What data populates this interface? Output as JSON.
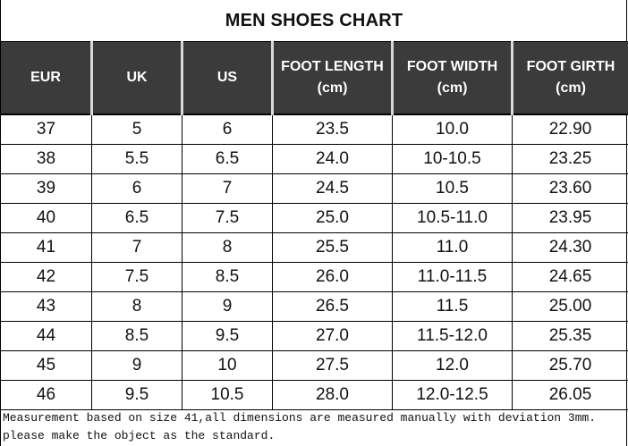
{
  "title": "MEN SHOES CHART",
  "table": {
    "headers": [
      {
        "line1": "EUR",
        "line2": ""
      },
      {
        "line1": "UK",
        "line2": ""
      },
      {
        "line1": "US",
        "line2": ""
      },
      {
        "line1": "FOOT LENGTH",
        "line2": "(cm)"
      },
      {
        "line1": "FOOT WIDTH",
        "line2": "(cm)"
      },
      {
        "line1": "FOOT GIRTH",
        "line2": "(cm)"
      }
    ],
    "rows": [
      [
        "37",
        "5",
        "6",
        "23.5",
        "10.0",
        "22.90"
      ],
      [
        "38",
        "5.5",
        "6.5",
        "24.0",
        "10-10.5",
        "23.25"
      ],
      [
        "39",
        "6",
        "7",
        "24.5",
        "10.5",
        "23.60"
      ],
      [
        "40",
        "6.5",
        "7.5",
        "25.0",
        "10.5-11.0",
        "23.95"
      ],
      [
        "41",
        "7",
        "8",
        "25.5",
        "11.0",
        "24.30"
      ],
      [
        "42",
        "7.5",
        "8.5",
        "26.0",
        "11.0-11.5",
        "24.65"
      ],
      [
        "43",
        "8",
        "9",
        "26.5",
        "11.5",
        "25.00"
      ],
      [
        "44",
        "8.5",
        "9.5",
        "27.0",
        "11.5-12.0",
        "25.35"
      ],
      [
        "45",
        "9",
        "10",
        "27.5",
        "12.0",
        "25.70"
      ],
      [
        "46",
        "9.5",
        "10.5",
        "28.0",
        "12.0-12.5",
        "26.05"
      ]
    ]
  },
  "footnote": {
    "line1": "Measurement based on size 41,all dimensions are measured manually with deviation 3mm.",
    "line2": "please make the object as the standard."
  },
  "colors": {
    "header_background": "#3b3b3b",
    "header_text": "#ffffff",
    "header_separator": "#d8d8d8"
  }
}
